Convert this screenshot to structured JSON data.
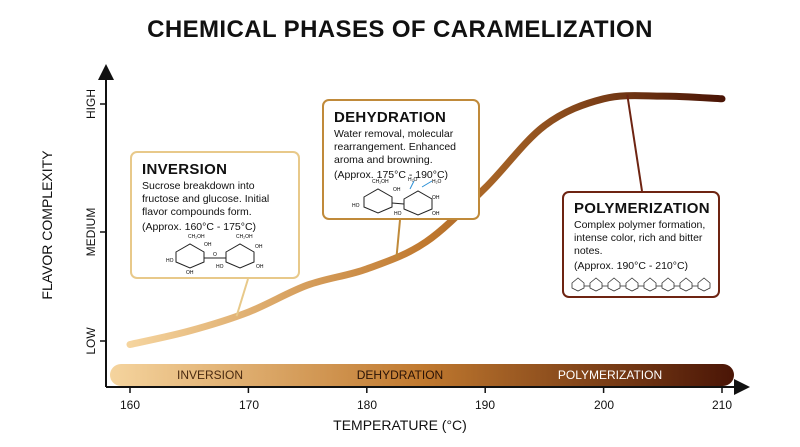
{
  "title": "CHEMICAL PHASES OF CARAMELIZATION",
  "x_axis": {
    "label": "TEMPERATURE (°C)",
    "ticks": [
      "160",
      "170",
      "180",
      "190",
      "200",
      "210"
    ]
  },
  "y_axis": {
    "label": "FLAVOR COMPLEXITY",
    "ticks": [
      "LOW",
      "MEDIUM",
      "HIGH"
    ]
  },
  "phase_band": {
    "labels": [
      "INVERSION",
      "DEHYDRATION",
      "POLYMERIZATION"
    ],
    "colors": {
      "start": "#f5d49e",
      "mid": "#c0792f",
      "end": "#4a1506"
    }
  },
  "phases": [
    {
      "title": "INVERSION",
      "description": "Sucrose breakdown into fructose and glucose. Initial flavor compounds form.",
      "range": "(Approx. 160°C - 175°C)",
      "border_color": "#e8c98a",
      "molecule_labels": [
        "CH₂OH",
        "CH₂OH",
        "OH",
        "OH",
        "HO",
        "O",
        "HO",
        "OH",
        "OH"
      ]
    },
    {
      "title": "DEHYDRATION",
      "description": "Water removal, molecular rearrangement. Enhanced aroma and browning.",
      "range": "(Approx. 175°C - 190°C)",
      "border_color": "#c08a3a",
      "molecule_labels": [
        "CH₂OH",
        "H₂O",
        "H₂O",
        "OH",
        "HO",
        "OH",
        "HO",
        "OH"
      ]
    },
    {
      "title": "POLYMERIZATION",
      "description": "Complex polymer formation, intense color, rich and bitter notes.",
      "range": "(Approx. 190°C - 210°C)",
      "border_color": "#6e2412"
    }
  ],
  "chart_data": {
    "type": "line",
    "title": "CHEMICAL PHASES OF CARAMELIZATION",
    "xlabel": "TEMPERATURE (°C)",
    "ylabel": "FLAVOR COMPLEXITY",
    "x": [
      160,
      165,
      170,
      175,
      180,
      185,
      190,
      195,
      200,
      205,
      210
    ],
    "y": [
      0.05,
      0.1,
      0.17,
      0.27,
      0.33,
      0.43,
      0.63,
      0.86,
      0.96,
      0.97,
      0.96
    ],
    "xlim": [
      158,
      211
    ],
    "ylim": [
      0,
      1
    ],
    "ytick_labels": [
      "LOW",
      "MEDIUM",
      "HIGH"
    ],
    "grid": false,
    "colors": [
      "#f5d49e",
      "#c0792f",
      "#4a1506"
    ]
  }
}
